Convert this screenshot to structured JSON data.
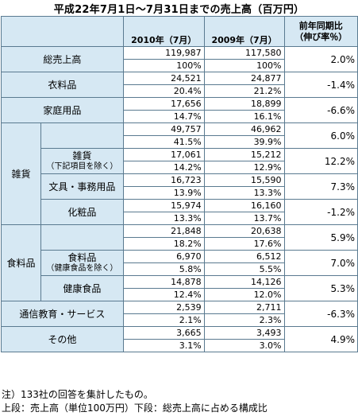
{
  "title": "平成22年7月1日～7月31日までの売上高（百万円）",
  "header": {
    "col_2010": "2010年（7月）",
    "col_2009": "2009年（7月）",
    "col_yoy_line1": "前年同期比",
    "col_yoy_line2": "（伸び率％）"
  },
  "rows": {
    "total": {
      "label": "総売上高",
      "v2010": "119,987",
      "p2010": "100%",
      "v2009": "117,580",
      "p2009": "100%",
      "yoy": "2.0%"
    },
    "clothing": {
      "label": "衣料品",
      "v2010": "24,521",
      "p2010": "20.4%",
      "v2009": "24,877",
      "p2009": "21.2%",
      "yoy": "-1.4%"
    },
    "household": {
      "label": "家庭用品",
      "v2010": "17,656",
      "p2010": "14.7%",
      "v2009": "18,899",
      "p2009": "16.1%",
      "yoy": "-6.6%"
    },
    "sundries": {
      "label": "雑貨",
      "v2010": "49,757",
      "p2010": "41.5%",
      "v2009": "46,962",
      "p2009": "39.9%",
      "yoy": "6.0%"
    },
    "sundries_other": {
      "label": "雑貨",
      "note": "（下記項目を除く）",
      "v2010": "17,061",
      "p2010": "14.2%",
      "v2009": "15,212",
      "p2009": "12.9%",
      "yoy": "12.2%"
    },
    "stationery": {
      "label": "文具・事務用品",
      "v2010": "16,723",
      "p2010": "13.9%",
      "v2009": "15,590",
      "p2009": "13.3%",
      "yoy": "7.3%"
    },
    "cosmetics": {
      "label": "化粧品",
      "v2010": "15,974",
      "p2010": "13.3%",
      "v2009": "16,160",
      "p2009": "13.7%",
      "yoy": "-1.2%"
    },
    "food": {
      "label": "食料品",
      "v2010": "21,848",
      "p2010": "18.2%",
      "v2009": "20,638",
      "p2009": "17.6%",
      "yoy": "5.9%"
    },
    "food_other": {
      "label": "食料品",
      "note": "（健康食品を除く）",
      "v2010": "6,970",
      "p2010": "5.8%",
      "v2009": "6,512",
      "p2009": "5.5%",
      "yoy": "7.0%"
    },
    "health": {
      "label": "健康食品",
      "v2010": "14,878",
      "p2010": "12.4%",
      "v2009": "14,126",
      "p2009": "12.0%",
      "yoy": "5.3%"
    },
    "education": {
      "label": "通信教育・サービス",
      "v2010": "2,539",
      "p2010": "2.1%",
      "v2009": "2,711",
      "p2009": "2.3%",
      "yoy": "-6.3%"
    },
    "other": {
      "label": "その他",
      "v2010": "3,665",
      "p2010": "3.1%",
      "v2009": "3,493",
      "p2009": "3.0%",
      "yoy": "4.9%"
    }
  },
  "footnote": {
    "line1": "注）133社の回答を集計したもの。",
    "line2": "上段：売上高（単位100万円）下段：総売上高に占める構成比"
  }
}
